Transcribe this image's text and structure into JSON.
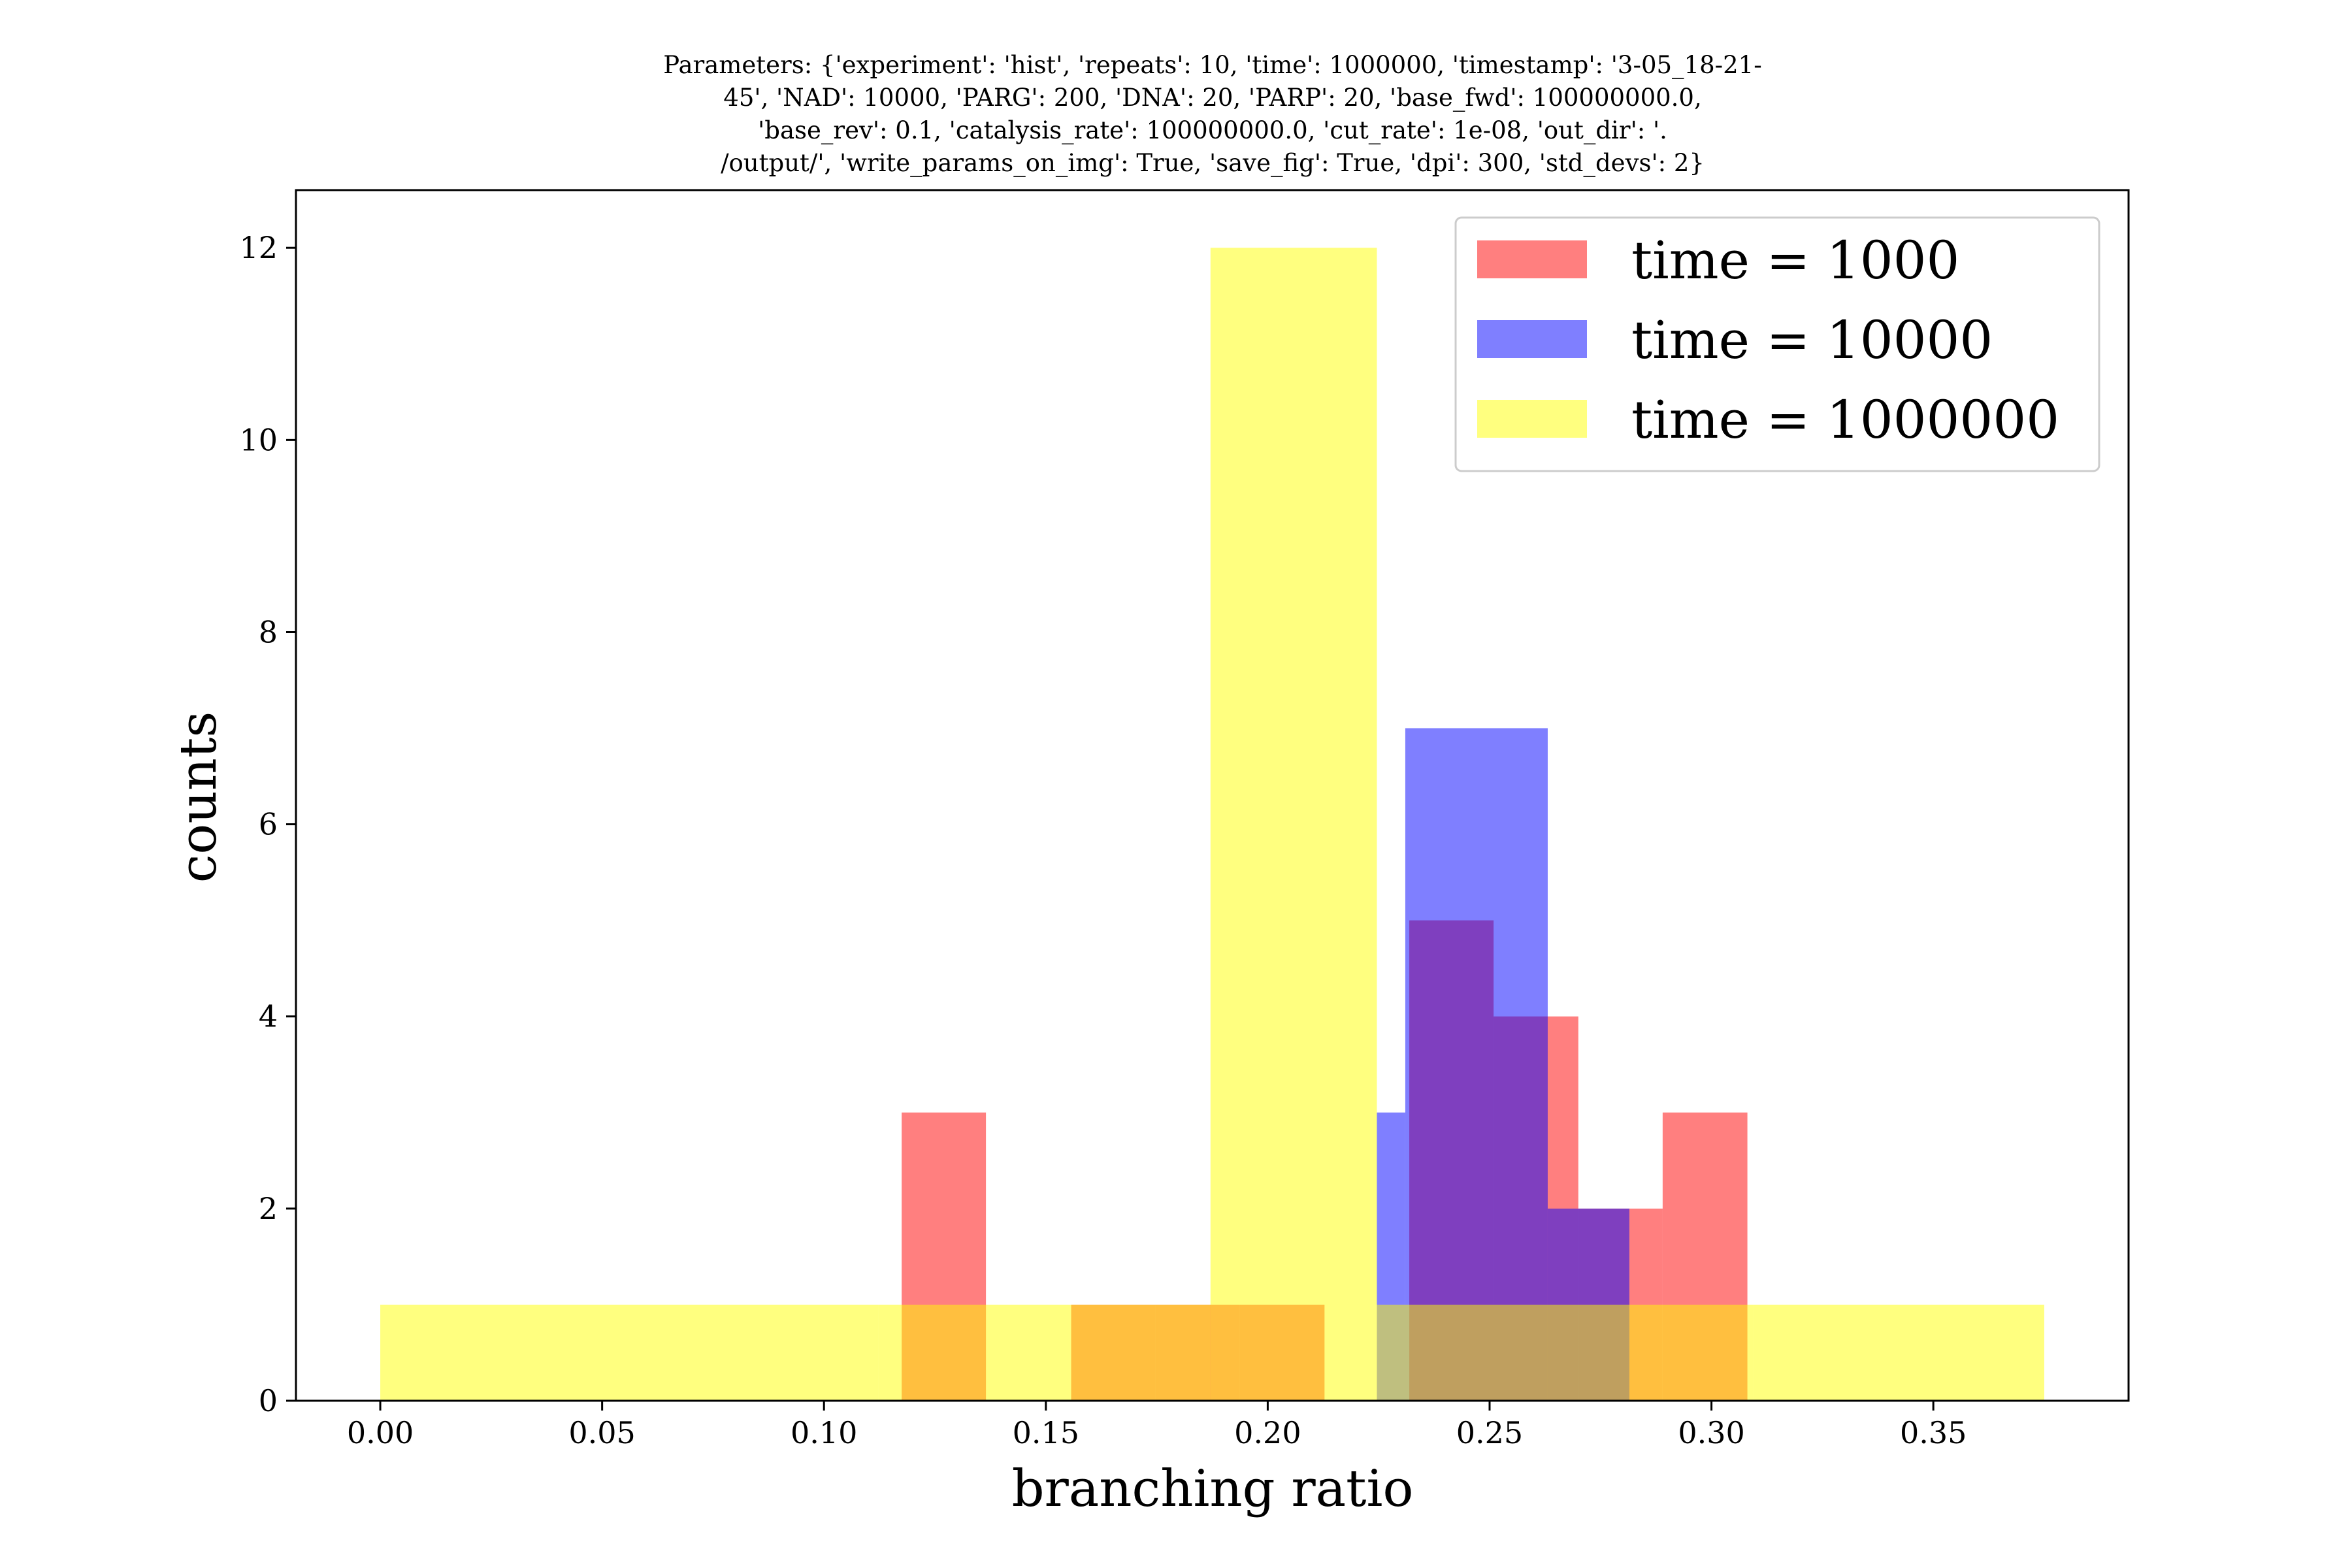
{
  "chart_data": {
    "type": "bar",
    "title_lines": [
      "Parameters: {'experiment': 'hist', 'repeats': 10, 'time': 1000000, 'timestamp': '3-05_18-21-",
      "45', 'NAD': 10000, 'PARG': 200, 'DNA': 20, 'PARP': 20, 'base_fwd': 100000000.0,",
      "'base_rev': 0.1, 'catalysis_rate': 100000000.0, 'cut_rate': 1e-08, 'out_dir': '.",
      "/output/', 'write_params_on_img': True, 'save_fig': True, 'dpi': 300, 'std_devs': 2}"
    ],
    "xlabel": "branching ratio",
    "ylabel": "counts",
    "xlim": [
      -0.019,
      0.394
    ],
    "ylim": [
      0,
      12.6
    ],
    "xticks": [
      "0.00",
      "0.05",
      "0.10",
      "0.15",
      "0.20",
      "0.25",
      "0.30",
      "0.35"
    ],
    "xtick_values": [
      0.0,
      0.05,
      0.1,
      0.15,
      0.2,
      0.25,
      0.3,
      0.35
    ],
    "yticks": [
      "0",
      "2",
      "4",
      "6",
      "8",
      "10",
      "12"
    ],
    "ytick_values": [
      0,
      2,
      4,
      6,
      8,
      10,
      12
    ],
    "grid": false,
    "legend_position": "top-right",
    "series": [
      {
        "name": "time = 1000",
        "color": "#ff0000",
        "opacity": 0.5,
        "bins": [
          {
            "x0": 0.1175,
            "x1": 0.1365,
            "count": 3
          },
          {
            "x0": 0.1557,
            "x1": 0.1747,
            "count": 1
          },
          {
            "x0": 0.1747,
            "x1": 0.1937,
            "count": 1
          },
          {
            "x0": 0.1937,
            "x1": 0.2128,
            "count": 1
          },
          {
            "x0": 0.2319,
            "x1": 0.2509,
            "count": 5
          },
          {
            "x0": 0.2509,
            "x1": 0.27,
            "count": 4
          },
          {
            "x0": 0.27,
            "x1": 0.289,
            "count": 2
          },
          {
            "x0": 0.289,
            "x1": 0.3081,
            "count": 3
          }
        ]
      },
      {
        "name": "time = 10000",
        "color": "#0000ff",
        "opacity": 0.5,
        "bins": [
          {
            "x0": 0.2246,
            "x1": 0.231,
            "count": 3
          },
          {
            "x0": 0.231,
            "x1": 0.2631,
            "count": 7
          },
          {
            "x0": 0.2631,
            "x1": 0.2815,
            "count": 2
          }
        ]
      },
      {
        "name": "time = 1000000",
        "color": "#ffff00",
        "opacity": 0.5,
        "bins": [
          {
            "x0": 0.0,
            "x1": 0.1122,
            "count": 1
          },
          {
            "x0": 0.1122,
            "x1": 0.1871,
            "count": 1
          },
          {
            "x0": 0.1871,
            "x1": 0.2246,
            "count": 12
          },
          {
            "x0": 0.2246,
            "x1": 0.3094,
            "count": 1
          },
          {
            "x0": 0.3094,
            "x1": 0.375,
            "count": 1
          }
        ]
      }
    ]
  }
}
